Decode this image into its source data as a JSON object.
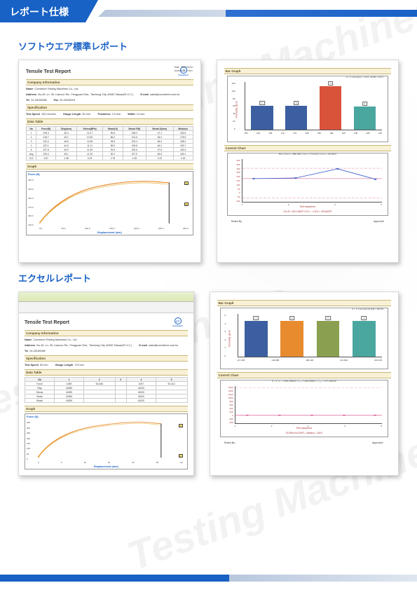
{
  "header": {
    "title": "レポート仕様"
  },
  "section1": {
    "title": "ソフトウエア標準レポート"
  },
  "section2": {
    "title": "エクセルレポート"
  },
  "watermarks": [
    "Testing Machines",
    "Testing Machines",
    "Testing Machines"
  ],
  "report_sw": {
    "title": "Tensile Test Report",
    "logo_text": "Cometech",
    "meta": {
      "date_label": "Date",
      "date_value": "2020/03/10",
      "author_label": "Author",
      "author_value": "Dr. Chen"
    },
    "company_band": "Company Information",
    "company": {
      "name_label": "Name",
      "name_value": "Cometech Testing Machines Co., Ltd.",
      "address_label": "Address",
      "address_value": "No.49, Ln. 39, Liancun Rd., Fengyuan Dist., Taichung City 42082 Taiwan(R.O.C.)",
      "email_label": "E-mail",
      "email_value": "sales@cometech.com.tw",
      "tel_label": "Tel",
      "tel_value": "04-25150088",
      "fax_label": "Fax",
      "fax_value": "04-25150001"
    },
    "spec_band": "Specification",
    "spec": {
      "speed_label": "Test Speed",
      "speed_value": "100 mm/min",
      "gauge_label": "Gauge Length",
      "gauge_value": "50 mm",
      "thick_label": "Thickness",
      "thick_value": "2.0 mm",
      "width_label": "Width",
      "width_value": "10 mm"
    },
    "data_band": "Data Table",
    "table": {
      "headers": [
        "No",
        "Force(N)",
        "Disp(mm)",
        "Stress(MPa)",
        "Strain(%)",
        "Break F(N)",
        "Break D(mm)",
        "Modulus"
      ],
      "rows": [
        [
          "1",
          "225.4",
          "45.3",
          "11.27",
          "90.6",
          "198.2",
          "47.1",
          "182.5"
        ],
        [
          "2",
          "218.7",
          "43.1",
          "10.94",
          "86.2",
          "191.6",
          "45.0",
          "178.9"
        ],
        [
          "3",
          "231.0",
          "46.8",
          "11.55",
          "93.6",
          "203.4",
          "48.3",
          "185.2"
        ],
        [
          "4",
          "222.1",
          "44.5",
          "11.11",
          "89.0",
          "195.8",
          "46.2",
          "180.7"
        ],
        [
          "5",
          "227.8",
          "45.9",
          "11.39",
          "91.8",
          "200.5",
          "47.6",
          "183.4"
        ],
        [
          "Avg",
          "225.0",
          "45.1",
          "11.25",
          "90.2",
          "197.9",
          "46.8",
          "182.1"
        ],
        [
          "S.D",
          "4.67",
          "1.38",
          "0.23",
          "2.76",
          "4.45",
          "1.23",
          "2.40"
        ]
      ]
    },
    "graph_band": "Graph",
    "chart": {
      "ylabel": "Force (N)",
      "xlabel": "Displacement (mm)",
      "yticks": [
        "250.0",
        "225.0",
        "200.0",
        "175.0",
        "150.0",
        "125.0"
      ],
      "xticks": [
        "0.0",
        "50.0",
        "100.0",
        "150.0",
        "200.0",
        "250.0",
        "300.0"
      ],
      "curve_color": "#e88b2e",
      "flags": [
        "1",
        "2"
      ]
    }
  },
  "report_charts": {
    "bar_band": "Bar Graph",
    "bar_legend": "K = 2, Force(N) x = 42.5, x2168 = 127.2",
    "bar_ylabel": "Force(N), g/cm",
    "bar": {
      "ylim": [
        0,
        120
      ],
      "yticks": [
        "120",
        "100",
        "80",
        "60",
        "40",
        "20",
        "0"
      ],
      "xticks": [
        "155",
        "160",
        "165",
        "170",
        "175",
        "180",
        "185",
        "190",
        "195",
        "200",
        "205",
        "210"
      ],
      "bars": [
        {
          "label": "1",
          "value": 60,
          "color": "#3b5fa0"
        },
        {
          "label": "2",
          "value": 60,
          "color": "#3b5fa0"
        },
        {
          "label": "3",
          "value": 110,
          "color": "#d9533b"
        },
        {
          "label": "4",
          "value": 58,
          "color": "#4aa7a0"
        }
      ]
    },
    "ctrl_band": "Control Chart",
    "ctrl_caption_top": "No.1  UCLx = 258.3451, CLx = 174.4113, LCLx = -90.4624",
    "ctrl": {
      "yticks": [
        "400",
        "350",
        "300",
        "250",
        "200",
        "150",
        "100",
        "50",
        "0",
        "-50",
        "-100"
      ],
      "line_color": "#2f55c9",
      "avg_color": "#d84a8a",
      "ucl_dash": "#d84a8a",
      "values": [
        170,
        172,
        260,
        168
      ],
      "avg": 174,
      "ucl": 258,
      "lcl": -90,
      "xlabel": "Test sequence",
      "xticks": [
        "1",
        "2",
        "3",
        "4"
      ]
    },
    "ctrl_caption_bottom": "UCLR = 152.135097  CLR = -      LCLR = 49.546079",
    "sig_tested": "Tested By",
    "sig_approved": "Approved"
  },
  "report_excel": {
    "title": "Tensile Test Report",
    "company_band": "Company Information",
    "spec_band": "Specification",
    "data_band": "Data Table",
    "spec": {
      "speed_label": "Test Speed",
      "speed_value": "50 mm",
      "gauge_label": "Gauge Length",
      "gauge_value": "175 mm"
    },
    "table": {
      "headers": [
        "No",
        "1",
        "2",
        "3",
        "4",
        "5"
      ],
      "rows": [
        [
          "Force",
          "1089",
          "92.848",
          "",
          "1097",
          "92.412"
        ],
        [
          "Disp",
          "40259",
          "",
          "",
          "40220",
          ""
        ],
        [
          "Stress",
          "40259",
          "",
          "",
          "40220",
          ""
        ],
        [
          "Strain",
          "40259",
          "",
          "",
          "40220",
          ""
        ],
        [
          "Break",
          "40259",
          "",
          "",
          "40220",
          ""
        ]
      ]
    },
    "graph_band": "Graph",
    "chart": {
      "ylabel": "Force (N)",
      "xlabel": "Displacement (mm)",
      "yticks": [
        "350",
        "300",
        "250",
        "200",
        "150",
        "100",
        "50",
        "0"
      ],
      "xticks": [
        "0",
        "5",
        "10",
        "15",
        "20",
        "25",
        "30"
      ],
      "curve_color": "#e88b2e",
      "flags": [
        "1",
        "2"
      ]
    }
  },
  "report_excel_charts": {
    "bar_band": "Bar Graph",
    "bar_legend": "K = 3, Force(N) LSL(98) = 500.00",
    "bar_ylabel": "Force(N), g/cm",
    "bar": {
      "yticks": [
        "5",
        "4",
        "3",
        "2",
        "1",
        "0"
      ],
      "xticks": [
        "117.185",
        "148.688",
        "180.190",
        "211.693",
        "243.195"
      ],
      "sublabels": [
        "131.21",
        "160.78",
        "190.35",
        "219.92",
        "249.49"
      ],
      "bars": [
        {
          "label": "1",
          "value": 4.2,
          "color": "#3b5fa0"
        },
        {
          "label": "2",
          "value": 4.2,
          "color": "#e88b2e"
        },
        {
          "label": "3",
          "value": 4.2,
          "color": "#8aa050"
        },
        {
          "label": "4",
          "value": 4.2,
          "color": "#4aa7a0"
        }
      ]
    },
    "ctrl_band": "Control Chart",
    "ctrl_caption_top": "K = 0, C₁ = 1490.094833, C₂₃ = 1448.008517, C₃₃ = -197.296150",
    "ctrl": {
      "yticks": [
        "1600",
        "1400",
        "1200",
        "1000",
        "800",
        "600",
        "400",
        "200",
        "0",
        "-200",
        "-400"
      ],
      "flat_value": 5,
      "flat_color": "#d84a8a",
      "xlabel": "Test sequence",
      "xticks": [
        "1",
        "2",
        "3",
        "4",
        "5"
      ]
    },
    "ctrl_caption_bottom": "AT1/Rev.0/A.00/P1, Callback = 15XX",
    "sig_tested": "Tested By :",
    "sig_approved": "Approved :"
  }
}
